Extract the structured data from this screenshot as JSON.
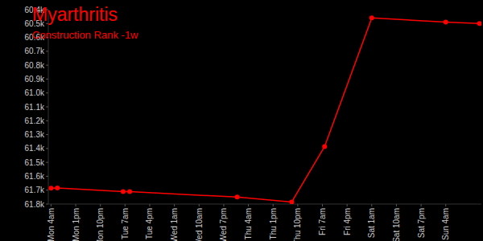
{
  "chart_data": {
    "type": "line",
    "title": "Myarthritis",
    "subtitle": "Construction Rank -1w",
    "x": [
      4,
      6.3,
      30.3,
      32.7,
      71.9,
      91.8,
      103.8,
      121,
      148,
      160.3
    ],
    "values": [
      61686,
      61685,
      61710,
      61711,
      61750,
      61785,
      61386,
      60460,
      60490,
      60500
    ],
    "color": "#ff0000",
    "marker": "circle",
    "grid": false,
    "xlim": [
      3,
      161
    ],
    "xticks": [
      {
        "value": 4,
        "label": "Mon 4am"
      },
      {
        "value": 13,
        "label": "Mon 1pm"
      },
      {
        "value": 22,
        "label": "Mon 10pm"
      },
      {
        "value": 31,
        "label": "Tue 7am"
      },
      {
        "value": 40,
        "label": "Tue 4pm"
      },
      {
        "value": 49,
        "label": "Wed 1am"
      },
      {
        "value": 58,
        "label": "Wed 10am"
      },
      {
        "value": 67,
        "label": "Wed 7pm"
      },
      {
        "value": 76,
        "label": "Thu 4am"
      },
      {
        "value": 85,
        "label": "Thu 1pm"
      },
      {
        "value": 94,
        "label": "Thu 10pm"
      },
      {
        "value": 103,
        "label": "Fri 7am"
      },
      {
        "value": 112,
        "label": "Fri 4pm"
      },
      {
        "value": 121,
        "label": "Sat 1am"
      },
      {
        "value": 130,
        "label": "Sat 10am"
      },
      {
        "value": 139,
        "label": "Sat 7pm"
      },
      {
        "value": 148,
        "label": "Sun 4am"
      }
    ],
    "ylim": [
      61800,
      60400
    ],
    "yticks": [
      {
        "value": 60400,
        "label": "60.4k"
      },
      {
        "value": 60500,
        "label": "60.5k"
      },
      {
        "value": 60600,
        "label": "60.6k"
      },
      {
        "value": 60700,
        "label": "60.7k"
      },
      {
        "value": 60800,
        "label": "60.8k"
      },
      {
        "value": 60900,
        "label": "60.9k"
      },
      {
        "value": 61000,
        "label": "61.0k"
      },
      {
        "value": 61100,
        "label": "61.1k"
      },
      {
        "value": 61200,
        "label": "61.2k"
      },
      {
        "value": 61300,
        "label": "61.3k"
      },
      {
        "value": 61400,
        "label": "61.4k"
      },
      {
        "value": 61500,
        "label": "61.5k"
      },
      {
        "value": 61600,
        "label": "61.6k"
      },
      {
        "value": 61700,
        "label": "61.7k"
      },
      {
        "value": 61800,
        "label": "61.8k"
      }
    ]
  }
}
